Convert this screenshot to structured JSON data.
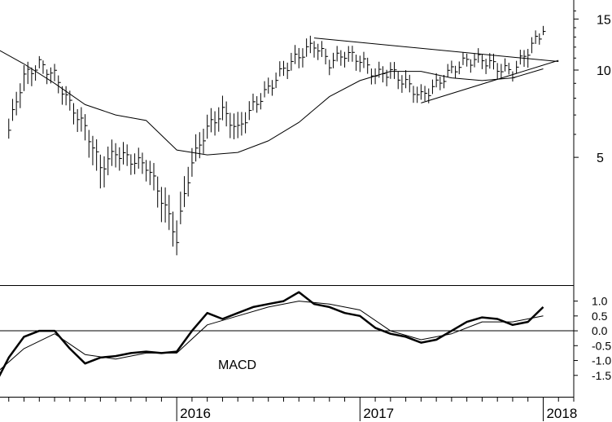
{
  "chart_data": [
    {
      "type": "line",
      "title": "",
      "xlabel": "",
      "ylabel": "",
      "y_scale": "log",
      "ylim": [
        2.2,
        17
      ],
      "x_tick_labels": [
        "2016",
        "2017",
        "2018"
      ],
      "y_tick_labels": [
        "15",
        "10",
        "5"
      ],
      "y_ticks": [
        15,
        10,
        5
      ],
      "grid": false,
      "series": [
        {
          "style": "price-bars",
          "x": [
            "2015-02",
            "2015-03",
            "2015-04",
            "2015-05",
            "2015-06",
            "2015-07",
            "2015-08",
            "2015-09",
            "2015-10",
            "2015-11",
            "2015-12",
            "2016-01",
            "2016-02",
            "2016-03",
            "2016-04",
            "2016-05",
            "2016-06",
            "2016-07",
            "2016-08",
            "2016-09",
            "2016-10",
            "2016-11",
            "2016-12",
            "2017-01",
            "2017-02",
            "2017-03",
            "2017-04",
            "2017-05",
            "2017-06",
            "2017-07",
            "2017-08",
            "2017-09",
            "2017-10",
            "2017-11",
            "2017-12",
            "2018-01"
          ],
          "values": [
            6.2,
            9.5,
            10.5,
            9.6,
            7.6,
            6.3,
            4.6,
            5.2,
            4.9,
            4.7,
            3.6,
            2.6,
            4.8,
            6.3,
            7.2,
            6.2,
            7.5,
            8.6,
            10.1,
            11.2,
            12.3,
            10.6,
            11.4,
            10.9,
            9.6,
            9.9,
            9.0,
            8.1,
            8.9,
            10.0,
            10.8,
            10.9,
            10.2,
            9.8,
            11.7,
            13.6
          ],
          "low": [
            5.8,
            8.3,
            9.8,
            8.8,
            7.0,
            5.6,
            3.9,
            4.7,
            4.5,
            4.3,
            3.1,
            2.35,
            4.3,
            5.7,
            6.5,
            5.6,
            7.0,
            8.1,
            9.5,
            10.3,
            11.4,
            10.0,
            10.6,
            10.1,
            9.0,
            9.2,
            8.4,
            7.6,
            8.4,
            9.5,
            10.2,
            10.2,
            9.6,
            9.5,
            10.6,
            13.2
          ],
          "high": [
            6.8,
            10.2,
            10.8,
            10.1,
            8.2,
            6.9,
            5.1,
            5.7,
            5.3,
            5.1,
            4.1,
            3.1,
            5.4,
            6.9,
            7.9,
            6.9,
            8.0,
            9.2,
            10.7,
            12.1,
            13.0,
            11.3,
            12.0,
            11.5,
            10.2,
            10.5,
            9.7,
            8.6,
            9.4,
            10.5,
            11.3,
            11.5,
            10.9,
            10.3,
            12.3,
            14.2
          ]
        },
        {
          "style": "moving-average",
          "x": [
            "2015-01",
            "2015-03",
            "2015-05",
            "2015-07",
            "2015-09",
            "2015-11",
            "2016-01",
            "2016-03",
            "2016-05",
            "2016-07",
            "2016-09",
            "2016-11",
            "2017-01",
            "2017-03",
            "2017-05",
            "2017-07",
            "2017-09",
            "2017-11",
            "2018-01"
          ],
          "values": [
            12.0,
            10.5,
            9.0,
            7.6,
            7.0,
            6.7,
            5.3,
            5.1,
            5.2,
            5.7,
            6.6,
            8.1,
            9.2,
            9.9,
            9.9,
            9.4,
            9.2,
            9.4,
            10.1
          ]
        }
      ],
      "trendlines": [
        {
          "x": [
            "2016-10",
            "2018-02"
          ],
          "y": [
            12.9,
            10.7
          ]
        },
        {
          "x": [
            "2017-05",
            "2018-02"
          ],
          "y": [
            7.7,
            10.8
          ]
        }
      ]
    },
    {
      "type": "line",
      "title": "",
      "annotation": "MACD",
      "y_tick_labels": [
        "1.0",
        "0.5",
        "0.0",
        "-0.5",
        "-1.0",
        "-1.5"
      ],
      "y_ticks": [
        1.0,
        0.5,
        0.0,
        -0.5,
        -1.0,
        -1.5
      ],
      "ylim": [
        -2.0,
        1.4
      ],
      "grid": false,
      "zero_line": true,
      "series": [
        {
          "style": "thick",
          "x": [
            "2015-01",
            "2015-02",
            "2015-03",
            "2015-04",
            "2015-05",
            "2015-06",
            "2015-07",
            "2015-08",
            "2015-09",
            "2015-10",
            "2015-11",
            "2015-12",
            "2016-01",
            "2016-02",
            "2016-03",
            "2016-04",
            "2016-05",
            "2016-06",
            "2016-07",
            "2016-08",
            "2016-09",
            "2016-10",
            "2016-11",
            "2016-12",
            "2017-01",
            "2017-02",
            "2017-03",
            "2017-04",
            "2017-05",
            "2017-06",
            "2017-07",
            "2017-08",
            "2017-09",
            "2017-10",
            "2017-11",
            "2017-12",
            "2018-01"
          ],
          "values": [
            -1.9,
            -0.9,
            -0.2,
            0.0,
            0.0,
            -0.6,
            -1.1,
            -0.9,
            -0.85,
            -0.75,
            -0.7,
            -0.75,
            -0.7,
            0.0,
            0.6,
            0.4,
            0.6,
            0.8,
            0.9,
            1.0,
            1.3,
            0.9,
            0.8,
            0.6,
            0.5,
            0.1,
            -0.1,
            -0.2,
            -0.4,
            -0.3,
            0.0,
            0.3,
            0.45,
            0.4,
            0.2,
            0.3,
            0.8
          ]
        },
        {
          "style": "thin",
          "x": [
            "2015-01",
            "2015-03",
            "2015-05",
            "2015-07",
            "2015-09",
            "2015-11",
            "2016-01",
            "2016-03",
            "2016-05",
            "2016-07",
            "2016-09",
            "2016-11",
            "2017-01",
            "2017-03",
            "2017-05",
            "2017-07",
            "2017-09",
            "2017-11",
            "2018-01"
          ],
          "values": [
            -1.5,
            -0.6,
            -0.1,
            -0.8,
            -0.95,
            -0.75,
            -0.75,
            0.2,
            0.5,
            0.8,
            1.0,
            0.9,
            0.7,
            0.0,
            -0.3,
            -0.1,
            0.3,
            0.3,
            0.5
          ]
        }
      ]
    }
  ]
}
